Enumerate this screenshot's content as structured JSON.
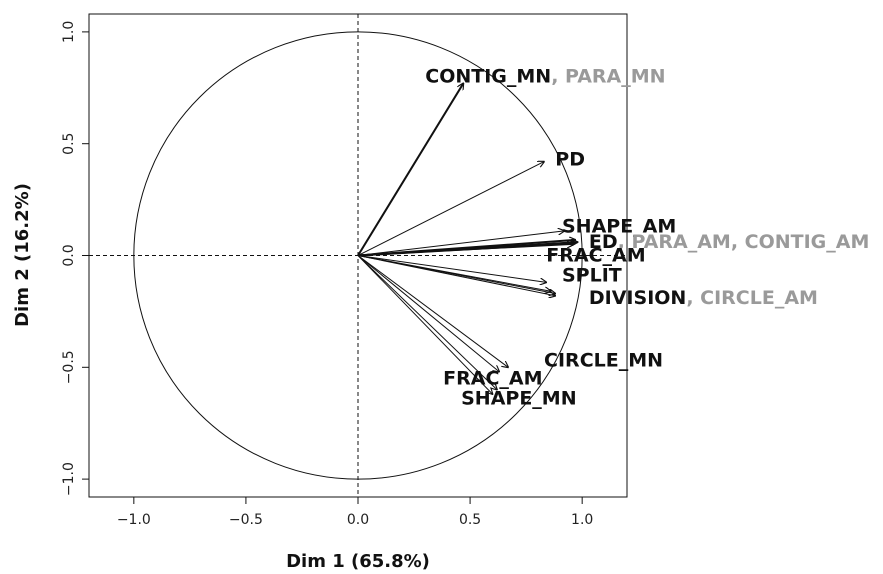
{
  "chart_data": {
    "type": "scatter",
    "subtype": "pca-variable-correlation-circle",
    "title": "",
    "xlabel": "Dim 1 (65.8%)",
    "ylabel": "Dim 2 (16.2%)",
    "xlim": [
      -1.2,
      1.2
    ],
    "ylim": [
      -1.08,
      1.08
    ],
    "xticks": [
      -1.0,
      -0.5,
      0.0,
      0.5,
      1.0
    ],
    "yticks": [
      -1.0,
      -0.5,
      0.0,
      0.5,
      1.0
    ],
    "xtick_labels": [
      "−1.0",
      "−0.5",
      "0.0",
      "0.5",
      "1.0"
    ],
    "ytick_labels": [
      "−1.0",
      "−0.5",
      "0.0",
      "0.5",
      "1.0"
    ],
    "grid": false,
    "unit_circle": true,
    "reference_lines": [
      {
        "axis": "x",
        "value": 0,
        "style": "dashed"
      },
      {
        "axis": "y",
        "value": 0,
        "style": "dashed"
      }
    ],
    "arrows": [
      {
        "x": 0.47,
        "y": 0.77,
        "bold": true
      },
      {
        "x": 0.83,
        "y": 0.42,
        "bold": false
      },
      {
        "x": 0.92,
        "y": 0.11,
        "bold": false
      },
      {
        "x": 0.97,
        "y": 0.07,
        "bold": true
      },
      {
        "x": 0.98,
        "y": 0.06,
        "bold": true
      },
      {
        "x": 0.97,
        "y": 0.055,
        "bold": true
      },
      {
        "x": 0.96,
        "y": 0.05,
        "bold": false
      },
      {
        "x": 0.84,
        "y": -0.12,
        "bold": false
      },
      {
        "x": 0.86,
        "y": -0.16,
        "bold": false
      },
      {
        "x": 0.88,
        "y": -0.17,
        "bold": false
      },
      {
        "x": 0.88,
        "y": -0.18,
        "bold": false
      },
      {
        "x": 0.67,
        "y": -0.5,
        "bold": false
      },
      {
        "x": 0.63,
        "y": -0.52,
        "bold": false
      },
      {
        "x": 0.62,
        "y": -0.6,
        "bold": false
      },
      {
        "x": 0.6,
        "y": -0.62,
        "bold": false
      }
    ],
    "labels": [
      {
        "text": "CONTIG_MN",
        "extra": ", PARA_MN",
        "x": 0.3,
        "y": 0.8
      },
      {
        "text": "PD",
        "extra": "",
        "x": 0.88,
        "y": 0.43
      },
      {
        "text": "SHAPE_AM",
        "extra": "",
        "x": 0.91,
        "y": 0.13
      },
      {
        "text": "ED",
        "extra": ", PARA_AM, CONTIG_AM",
        "x": 1.03,
        "y": 0.06
      },
      {
        "text": "FRAC_AM",
        "extra": "",
        "x": 0.84,
        "y": 0.0
      },
      {
        "text": "SPLIT",
        "extra": "",
        "x": 0.91,
        "y": -0.09
      },
      {
        "text": "DIVISION",
        "extra": ", CIRCLE_AM",
        "x": 1.03,
        "y": -0.19
      },
      {
        "text": "CIRCLE_MN",
        "extra": "",
        "x": 0.83,
        "y": -0.47
      },
      {
        "text": "FRAC_AM",
        "extra": "",
        "x": 0.38,
        "y": -0.55
      },
      {
        "text": "SHAPE_MN",
        "extra": "",
        "x": 0.46,
        "y": -0.64
      }
    ]
  }
}
